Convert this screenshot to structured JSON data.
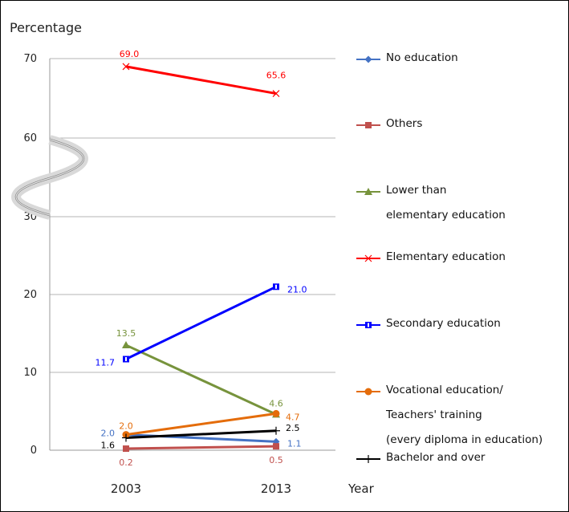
{
  "chart_data": {
    "type": "line",
    "ylabel": "Percentage",
    "xlabel": "Year",
    "x": [
      "2003",
      "2013"
    ],
    "yticks": [
      "0",
      "10",
      "20",
      "30",
      "60",
      "70"
    ],
    "y_axis_break": [
      30,
      60
    ],
    "series": [
      {
        "name": "No education",
        "color": "#4472c4",
        "marker": "diamond",
        "values": [
          2.0,
          1.1
        ],
        "labels": [
          "2.0",
          "1.1"
        ]
      },
      {
        "name": "Others",
        "color": "#c0504d",
        "marker": "square",
        "values": [
          0.2,
          0.5
        ],
        "labels": [
          "0.2",
          "0.5"
        ]
      },
      {
        "name": "Lower than elementary education",
        "name_lines": [
          "Lower than",
          "elementary education"
        ],
        "color": "#77933c",
        "marker": "triangle",
        "values": [
          13.5,
          4.6
        ],
        "labels": [
          "13.5",
          "4.6"
        ]
      },
      {
        "name": "Elementary education",
        "color": "#ff0000",
        "marker": "x",
        "values": [
          69.0,
          65.6
        ],
        "labels": [
          "69.0",
          "65.6"
        ]
      },
      {
        "name": "Secondary education",
        "color": "#0000ff",
        "marker": "square-filled",
        "values": [
          11.7,
          21.0
        ],
        "labels": [
          "11.7",
          "21.0"
        ]
      },
      {
        "name": "Vocational education/ Teachers' training (every diploma in education)",
        "name_lines": [
          "Vocational education/",
          "Teachers' training",
          "(every diploma in education)"
        ],
        "color": "#e46c0a",
        "marker": "circle",
        "values": [
          2.0,
          4.7
        ],
        "labels": [
          "2.0",
          "4.7"
        ]
      },
      {
        "name": "Bachelor and over",
        "color": "#000000",
        "marker": "plus",
        "values": [
          1.6,
          2.5
        ],
        "labels": [
          "1.6",
          "2.5"
        ]
      }
    ]
  }
}
